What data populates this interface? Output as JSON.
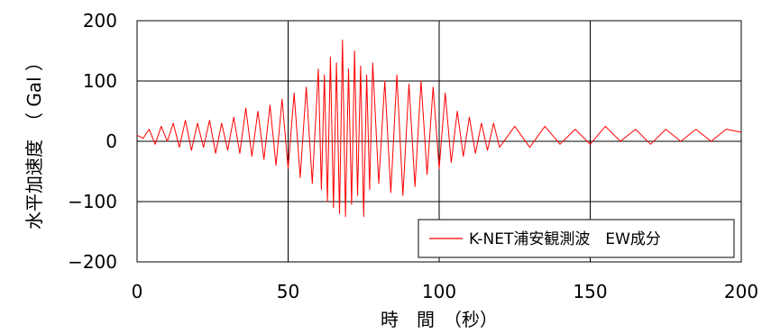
{
  "chart_data": {
    "type": "line",
    "xlabel": "時　間　（秒）",
    "ylabel": "水平加速度　（ Gal ）",
    "xlim": [
      0,
      200
    ],
    "ylim": [
      -200,
      200
    ],
    "x_ticks": [
      "0",
      "50",
      "100",
      "150",
      "200"
    ],
    "y_ticks": [
      "200",
      "100",
      "0",
      "−100",
      "−200"
    ],
    "x_tick_values": [
      0,
      50,
      100,
      150,
      200
    ],
    "y_tick_values": [
      200,
      100,
      0,
      -100,
      -200
    ],
    "grid": true,
    "legend_position": "bottom-right",
    "series": [
      {
        "name": "K-NET浦安観測波　EW成分",
        "color": "#ff0000",
        "x": [
          0,
          2,
          4,
          6,
          8,
          10,
          12,
          14,
          16,
          18,
          20,
          22,
          24,
          26,
          28,
          30,
          32,
          34,
          36,
          38,
          40,
          42,
          44,
          46,
          48,
          50,
          52,
          54,
          56,
          58,
          60,
          61,
          62,
          63,
          64,
          65,
          66,
          67,
          68,
          69,
          70,
          71,
          72,
          73,
          74,
          75,
          76,
          77,
          78,
          80,
          82,
          84,
          86,
          88,
          90,
          92,
          94,
          96,
          98,
          100,
          102,
          104,
          106,
          108,
          110,
          112,
          114,
          116,
          118,
          120,
          125,
          130,
          135,
          140,
          145,
          150,
          155,
          160,
          165,
          170,
          175,
          180,
          185,
          190,
          195,
          200
        ],
        "y": [
          10,
          5,
          20,
          -5,
          25,
          0,
          30,
          -10,
          35,
          -15,
          30,
          -10,
          35,
          -20,
          30,
          -15,
          40,
          -20,
          55,
          -25,
          50,
          -30,
          60,
          -40,
          70,
          -45,
          80,
          -60,
          90,
          -70,
          120,
          -80,
          110,
          -100,
          140,
          -110,
          130,
          -120,
          168,
          -125,
          120,
          -105,
          150,
          -90,
          125,
          -125,
          110,
          -80,
          130,
          -70,
          100,
          -85,
          110,
          -90,
          95,
          -75,
          100,
          -55,
          90,
          -45,
          80,
          -35,
          50,
          -25,
          40,
          -20,
          30,
          -15,
          30,
          -10,
          25,
          -10,
          25,
          -5,
          20,
          -5,
          25,
          0,
          20,
          -5,
          20,
          0,
          20,
          0,
          20,
          15
        ]
      }
    ]
  }
}
